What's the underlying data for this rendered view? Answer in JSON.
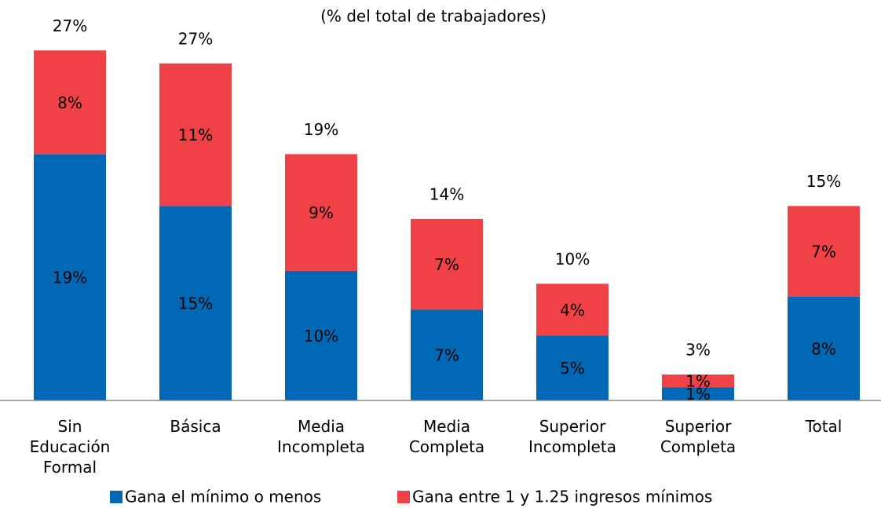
{
  "chart_data": {
    "type": "stacked_bar",
    "title": "(% del total de trabajadores)",
    "categories": [
      "Sin Educación Formal",
      "Básica",
      "Media Incompleta",
      "Media Completa",
      "Superior Incompleta",
      "Superior Completa",
      "Total"
    ],
    "series": [
      {
        "name": "Gana el mínimo o menos",
        "color": "#0068b4",
        "values": [
          19,
          15,
          10,
          7,
          5,
          1,
          8
        ],
        "value_labels": [
          "19%",
          "15%",
          "10%",
          "7%",
          "5%",
          "1%",
          "8%"
        ]
      },
      {
        "name": "Gana entre 1 y 1.25 ingresos mínimos",
        "color": "#ef4146",
        "values": [
          8,
          11,
          9,
          7,
          4,
          1,
          7
        ],
        "value_labels": [
          "8%",
          "11%",
          "9%",
          "7%",
          "4%",
          "1%",
          "7%"
        ]
      }
    ],
    "totals": [
      27,
      27,
      19,
      14,
      10,
      3,
      15
    ],
    "total_labels": [
      "27%",
      "27%",
      "19%",
      "14%",
      "10%",
      "3%",
      "15%"
    ],
    "ylim": [
      0,
      27.5
    ]
  }
}
